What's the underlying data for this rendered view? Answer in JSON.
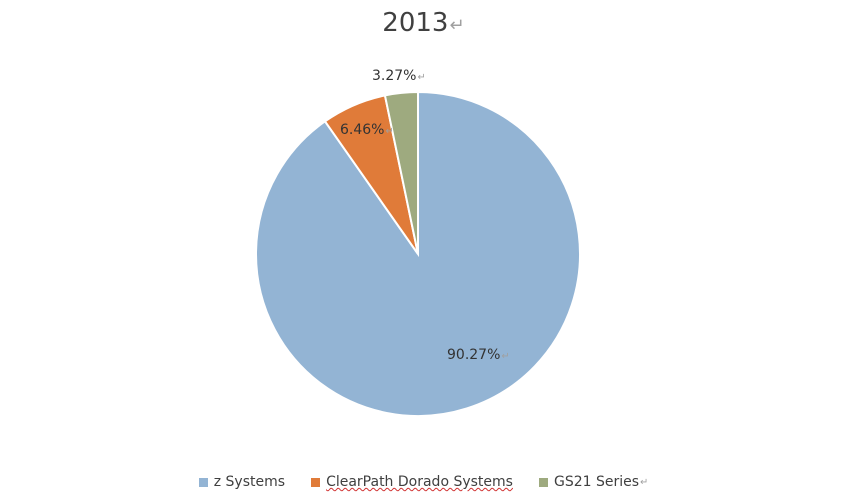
{
  "chart_data": {
    "type": "pie",
    "title": "2013",
    "categories": [
      "z Systems",
      "ClearPath Dorado Systems",
      "GS21 Series"
    ],
    "values": [
      90.27,
      6.46,
      3.27
    ],
    "labels": [
      "90.27%",
      "6.46%",
      "3.27%"
    ],
    "colors": [
      "#93B4D4",
      "#E07B39",
      "#9EAA7F"
    ],
    "legend_position": "bottom",
    "start_angle_deg": 0,
    "direction": "clockwise"
  },
  "marks": {
    "paragraph_mark": "↵"
  }
}
